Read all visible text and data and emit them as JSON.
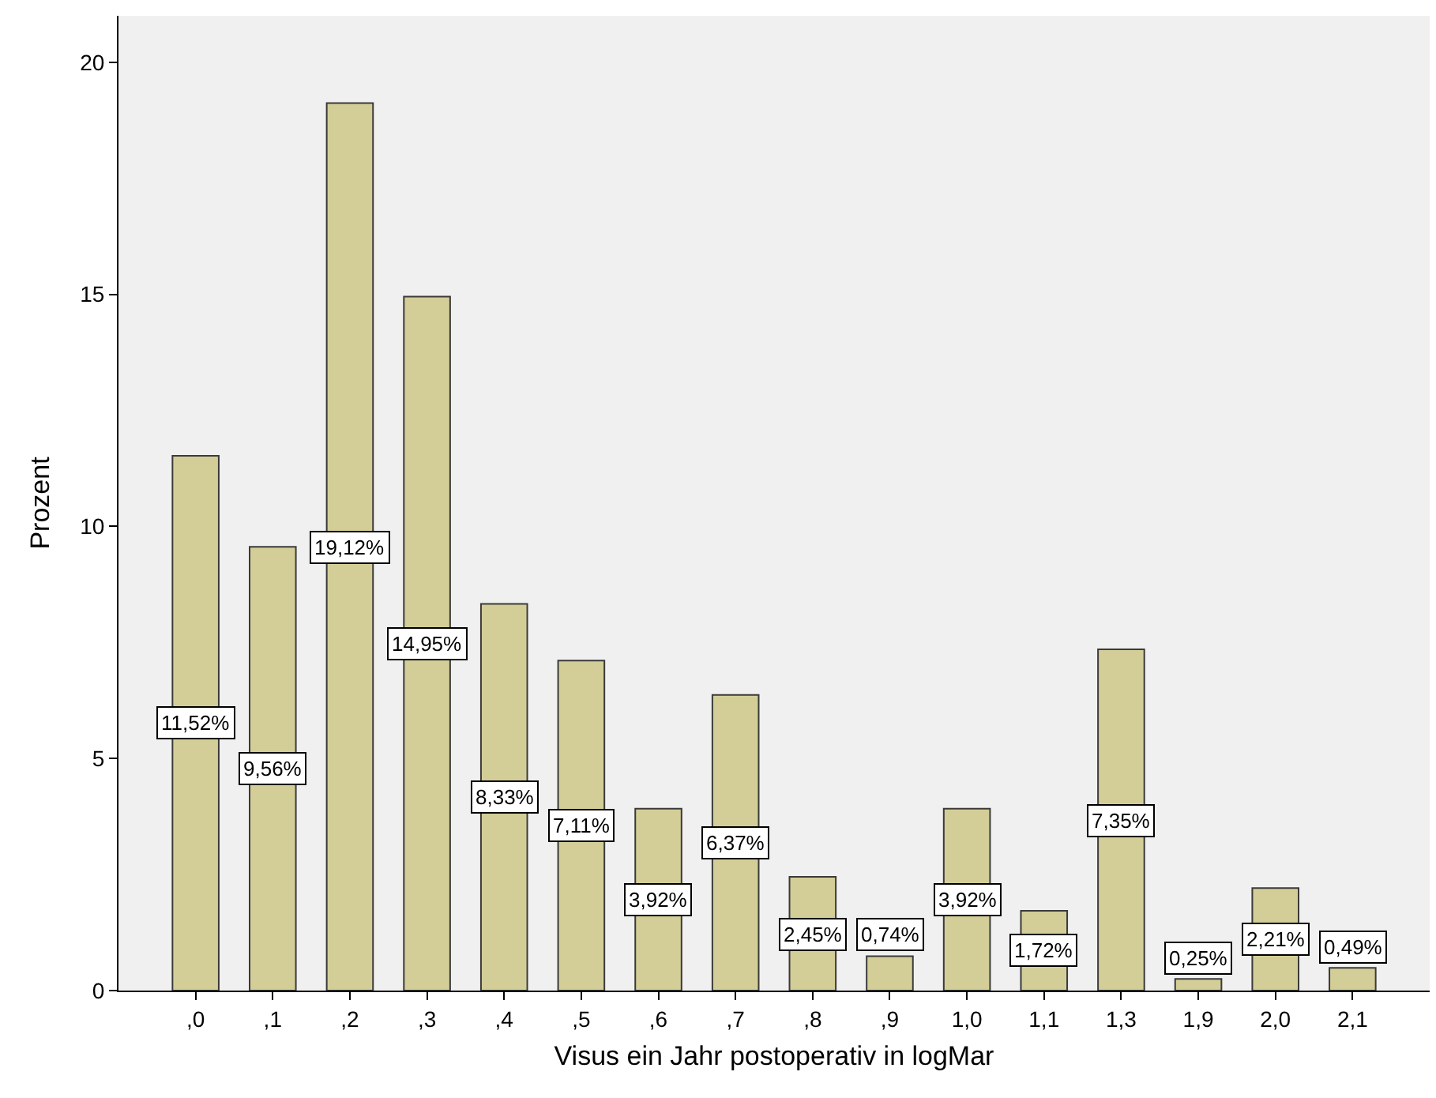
{
  "chart_data": {
    "type": "bar",
    "xlabel": "Visus ein Jahr postoperativ in logMar",
    "ylabel": "Prozent",
    "categories": [
      ",0",
      ",1",
      ",2",
      ",3",
      ",4",
      ",5",
      ",6",
      ",7",
      ",8",
      ",9",
      "1,0",
      "1,1",
      "1,3",
      "1,9",
      "2,0",
      "2,1"
    ],
    "values": [
      11.52,
      9.56,
      19.12,
      14.95,
      8.33,
      7.11,
      3.92,
      6.37,
      2.45,
      0.74,
      3.92,
      1.72,
      7.35,
      0.25,
      2.21,
      0.49
    ],
    "value_labels": [
      "11,52%",
      "9,56%",
      "19,12%",
      "14,95%",
      "8,33%",
      "7,11%",
      "3,92%",
      "6,37%",
      "2,45%",
      "0,74%",
      "3,92%",
      "1,72%",
      "7,35%",
      "0,25%",
      "2,21%",
      "0,49%"
    ],
    "color": "#d3ce97",
    "ylim": [
      0,
      21
    ],
    "yticks": [
      0,
      5,
      10,
      15,
      20
    ],
    "grid": false,
    "legend": false
  }
}
